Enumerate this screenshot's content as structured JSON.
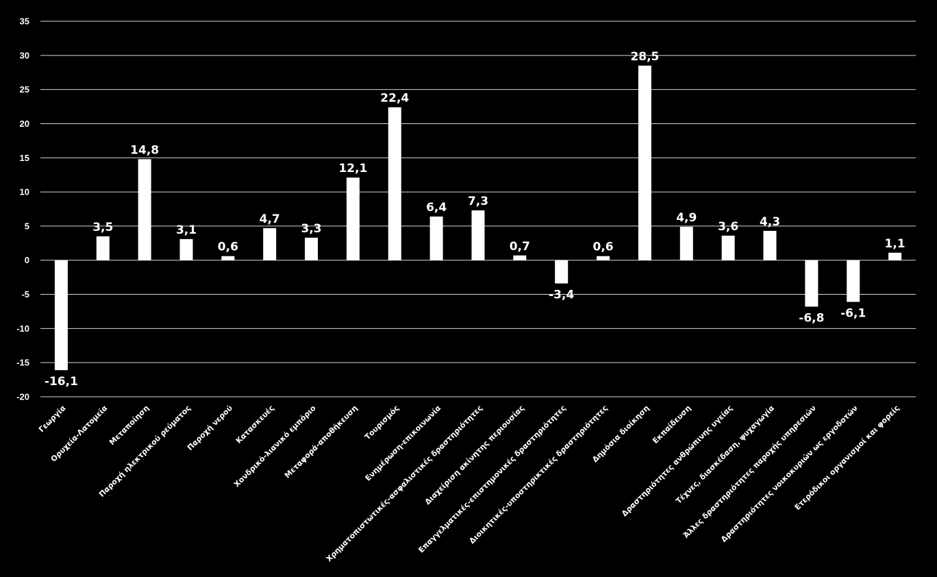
{
  "chart_data": {
    "type": "bar",
    "title": "",
    "xlabel": "",
    "ylabel": "",
    "ylim": [
      -20,
      35
    ],
    "yticks": [
      "35",
      "30",
      "25",
      "20",
      "15",
      "10",
      "5",
      "0",
      "-5",
      "-10",
      "-15",
      "-20"
    ],
    "ytick_values": [
      35,
      30,
      25,
      20,
      15,
      10,
      5,
      0,
      -5,
      -10,
      -15,
      -20
    ],
    "grid": true,
    "bar_color": "#ffffff",
    "background": "#000000",
    "categories": [
      "Γεωργία",
      "Ορυχεία-Λατομεία",
      "Μεταποίηση",
      "Παροχή ηλεκτρικού ρεύματος",
      "Παροχή νερού",
      "Κατασκευές",
      "Χονδρικό-λιανικό εμπόριο",
      "Μεταφορά-αποθήκευση",
      "Τουρισμός",
      "Ενημέρωση-επικοινωνία",
      "Χρηματοπιστωτικές-ασφαλιστικές δραστηριότητες",
      "Διαχείριση ακίνητης περιουσίας",
      "Επαγγελματικές-επιστημονικές δραστηριότητες",
      "Διοικητικές-υποστηρικτικές δραστηριότητες",
      "Δημόσια διοίκηση",
      "Εκπαίδευση",
      "Δραστηριότητες ανθρώπινης υγείας",
      "Τέχνες, διασκέδαση, ψυχαγωγία",
      "Άλλες δραστηριότητες παροχής υπηρεσιών",
      "Δραστηριότητες νοικοκυριών ως εργοδοτών",
      "Ετερόδικοι οργανισμοί και φορείς"
    ],
    "values": [
      -16.1,
      3.5,
      14.8,
      3.1,
      0.6,
      4.7,
      3.3,
      12.1,
      22.4,
      6.4,
      7.3,
      0.7,
      -3.4,
      0.6,
      28.5,
      4.9,
      3.6,
      4.3,
      -6.8,
      -6.1,
      1.1
    ],
    "value_labels": [
      "-16,1",
      "3,5",
      "14,8",
      "3,1",
      "0,6",
      "4,7",
      "3,3",
      "12,1",
      "22,4",
      "6,4",
      "7,3",
      "0,7",
      "-3,4",
      "0,6",
      "28,5",
      "4,9",
      "3,6",
      "4,3",
      "-6,8",
      "-6,1",
      "1,1"
    ]
  }
}
